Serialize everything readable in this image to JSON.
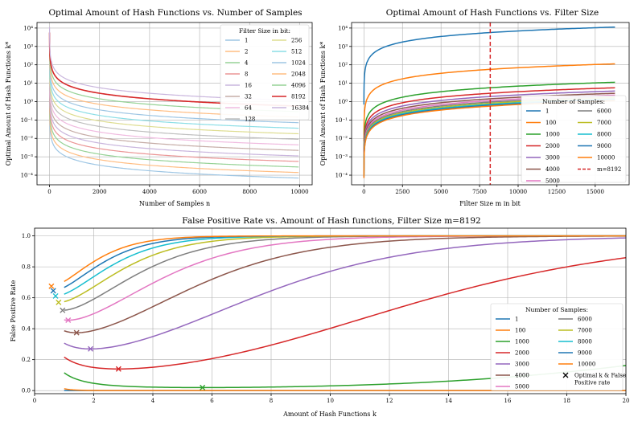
{
  "colors": {
    "palette": [
      "#1f77b4",
      "#ff7f0e",
      "#2ca02c",
      "#d62728",
      "#9467bd",
      "#8c564b",
      "#e377c2",
      "#7f7f7f",
      "#bcbd22",
      "#17becf"
    ],
    "light_palette": [
      "#9ec6e4",
      "#ffbd82",
      "#95d295",
      "#eb9595",
      "#c9b5dd",
      "#c6ada7",
      "#f0bbe0",
      "#bfbfbf",
      "#dedd91",
      "#8bdee6"
    ],
    "vline": "#d62728"
  },
  "chart_data": [
    {
      "type": "line",
      "title": "Optimal Amount of Hash Functions vs. Number of Samples",
      "xlabel": "Number of Samples n",
      "ylabel": "Optimal Amount of Hash Functions k*",
      "xscale": "linear",
      "yscale": "log",
      "xlim": [
        -500,
        10500
      ],
      "ylim": [
        3e-05,
        20000
      ],
      "xticks": [
        0,
        2000,
        4000,
        6000,
        8000,
        10000
      ],
      "xtick_labels": [
        "0",
        "2000",
        "4000",
        "6000",
        "8000",
        "10000"
      ],
      "yticks": [
        0.0001,
        0.001,
        0.01,
        0.1,
        1,
        10,
        100,
        1000,
        10000
      ],
      "ytick_labels": [
        "10⁻⁴",
        "10⁻³",
        "10⁻²",
        "10⁻¹",
        "10⁰",
        "10¹",
        "10²",
        "10³",
        "10⁴"
      ],
      "model": "k = ln(2) * m / n",
      "legend_title": "Filter Size in bit:",
      "legend_location": "top-right",
      "series": [
        {
          "name": "1",
          "m": 1
        },
        {
          "name": "2",
          "m": 2
        },
        {
          "name": "4",
          "m": 4
        },
        {
          "name": "8",
          "m": 8
        },
        {
          "name": "16",
          "m": 16
        },
        {
          "name": "32",
          "m": 32
        },
        {
          "name": "64",
          "m": 64
        },
        {
          "name": "128",
          "m": 128
        },
        {
          "name": "256",
          "m": 256
        },
        {
          "name": "512",
          "m": 512
        },
        {
          "name": "1024",
          "m": 1024
        },
        {
          "name": "2048",
          "m": 2048
        },
        {
          "name": "4096",
          "m": 4096
        },
        {
          "name": "8192",
          "m": 8192
        },
        {
          "name": "16384",
          "m": 16384
        }
      ],
      "highlighted_series": "8192"
    },
    {
      "type": "line",
      "title": "Optimal Amount of Hash Functions vs. Filter Size",
      "xlabel": "Filter Size m in bit",
      "ylabel": "Optimal Amount of Hash Functions k*",
      "xscale": "linear",
      "yscale": "log",
      "xlim": [
        -800,
        17200
      ],
      "ylim": [
        3e-05,
        20000
      ],
      "xticks": [
        0,
        2500,
        5000,
        7500,
        10000,
        12500,
        15000
      ],
      "xtick_labels": [
        "0",
        "2500",
        "5000",
        "7500",
        "10000",
        "12500",
        "15000"
      ],
      "yticks": [
        0.0001,
        0.001,
        0.01,
        0.1,
        1,
        10,
        100,
        1000,
        10000
      ],
      "ytick_labels": [
        "10⁻⁴",
        "10⁻³",
        "10⁻²",
        "10⁻¹",
        "10⁰",
        "10¹",
        "10²",
        "10³",
        "10⁴"
      ],
      "model": "k = ln(2) * m / n",
      "legend_title": "Number of Samples:",
      "legend_location": "lower-right",
      "series": [
        {
          "name": "1",
          "n": 1
        },
        {
          "name": "100",
          "n": 100
        },
        {
          "name": "1000",
          "n": 1000
        },
        {
          "name": "2000",
          "n": 2000
        },
        {
          "name": "3000",
          "n": 3000
        },
        {
          "name": "4000",
          "n": 4000
        },
        {
          "name": "5000",
          "n": 5000
        },
        {
          "name": "6000",
          "n": 6000
        },
        {
          "name": "7000",
          "n": 7000
        },
        {
          "name": "8000",
          "n": 8000
        },
        {
          "name": "9000",
          "n": 9000
        },
        {
          "name": "10000",
          "n": 10000
        }
      ],
      "vline": {
        "x": 8192,
        "label": "m=8192",
        "style": "dashed"
      }
    },
    {
      "type": "line",
      "title": "False Positive Rate vs. Amount of Hash functions, Filter Size m=8192",
      "xlabel": "Amount of Hash Functions k",
      "ylabel": "False Positive Rate",
      "xscale": "linear",
      "yscale": "linear",
      "xlim": [
        0,
        20
      ],
      "ylim": [
        -0.02,
        1.05
      ],
      "xticks": [
        0,
        2,
        4,
        6,
        8,
        10,
        12,
        14,
        16,
        18,
        20
      ],
      "xtick_labels": [
        "0",
        "2",
        "4",
        "6",
        "8",
        "10",
        "12",
        "14",
        "16",
        "18",
        "20"
      ],
      "yticks": [
        0.0,
        0.2,
        0.4,
        0.6,
        0.8,
        1.0
      ],
      "ytick_labels": [
        "0.0",
        "0.2",
        "0.4",
        "0.6",
        "0.8",
        "1.0"
      ],
      "model": "p = (1 - exp(-k*n/m))^k, m = 8192, k from 1 to 20",
      "m": 8192,
      "legend_title": "Number of Samples:",
      "legend_location": "lower-right",
      "series": [
        {
          "name": "1",
          "n": 1
        },
        {
          "name": "100",
          "n": 100
        },
        {
          "name": "1000",
          "n": 1000
        },
        {
          "name": "2000",
          "n": 2000
        },
        {
          "name": "3000",
          "n": 3000
        },
        {
          "name": "4000",
          "n": 4000
        },
        {
          "name": "5000",
          "n": 5000
        },
        {
          "name": "6000",
          "n": 6000
        },
        {
          "name": "7000",
          "n": 7000
        },
        {
          "name": "8000",
          "n": 8000
        },
        {
          "name": "9000",
          "n": 9000
        },
        {
          "name": "10000",
          "n": 10000
        }
      ],
      "optimum_marker_label": "Optimal k & False Positive rate"
    }
  ]
}
